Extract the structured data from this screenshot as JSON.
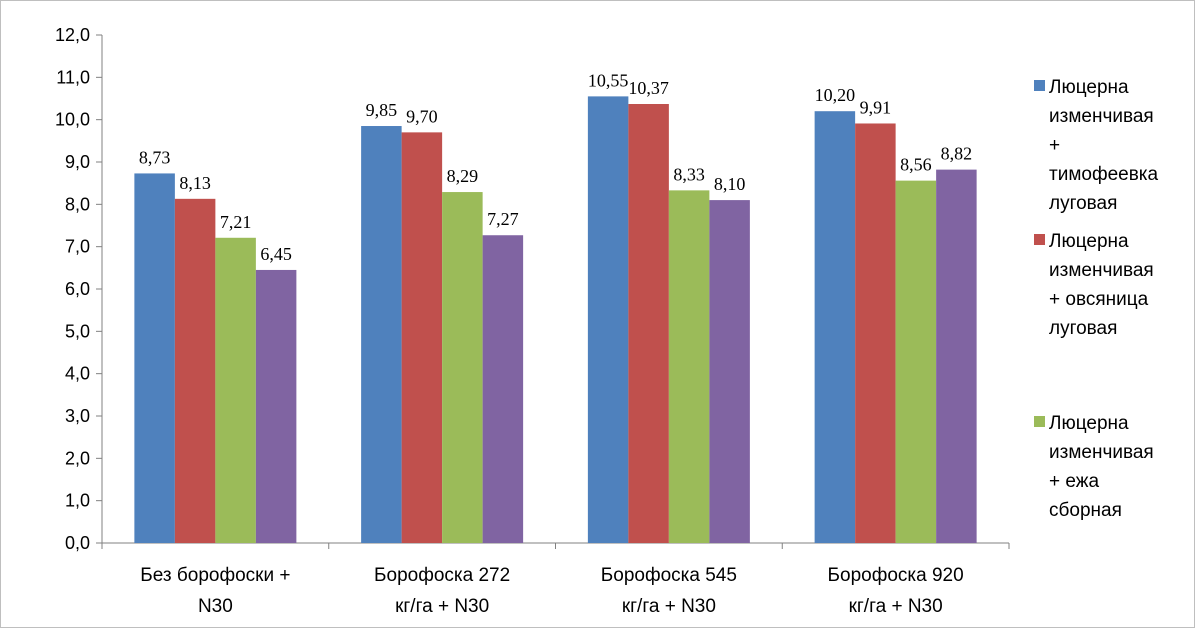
{
  "chart_data": {
    "type": "bar",
    "title": "",
    "xlabel": "",
    "ylabel": "",
    "ylim": [
      0,
      12
    ],
    "y_ticks": [
      "0,0",
      "1,0",
      "2,0",
      "3,0",
      "4,0",
      "5,0",
      "6,0",
      "7,0",
      "8,0",
      "9,0",
      "10,0",
      "11,0",
      "12,0"
    ],
    "grid": false,
    "legend_position": "right",
    "categories": [
      [
        "Без борофоски +",
        "N30"
      ],
      [
        "Борофоска 272",
        "кг/га + N30"
      ],
      [
        "Борофоска 545",
        "кг/га + N30"
      ],
      [
        "Борофоска 920",
        "кг/га + N30"
      ]
    ],
    "series": [
      {
        "name": [
          "Люцерна",
          "изменчивая",
          "+",
          "тимофеевка",
          "луговая"
        ],
        "color": "#4f81bd",
        "values": [
          8.73,
          9.85,
          10.55,
          10.2
        ],
        "labels": [
          "8,73",
          "9,85",
          "10,55",
          "10,20"
        ]
      },
      {
        "name": [
          "Люцерна",
          "изменчивая",
          "+ овсяница",
          "луговая"
        ],
        "color": "#c0504d",
        "values": [
          8.13,
          9.7,
          10.37,
          9.91
        ],
        "labels": [
          "8,13",
          "9,70",
          "10,37",
          "9,91"
        ]
      },
      {
        "name": [
          "Люцерна",
          "изменчивая",
          "+ ежа",
          "сборная"
        ],
        "color": "#9bbb59",
        "values": [
          7.21,
          8.29,
          8.33,
          8.56
        ],
        "labels": [
          "7,21",
          "8,29",
          "8,33",
          "8,56"
        ]
      },
      {
        "name": [],
        "color": "#8064a2",
        "values": [
          6.45,
          7.27,
          8.1,
          8.82
        ],
        "labels": [
          "6,45",
          "7,27",
          "8,10",
          "8,82"
        ]
      }
    ]
  }
}
